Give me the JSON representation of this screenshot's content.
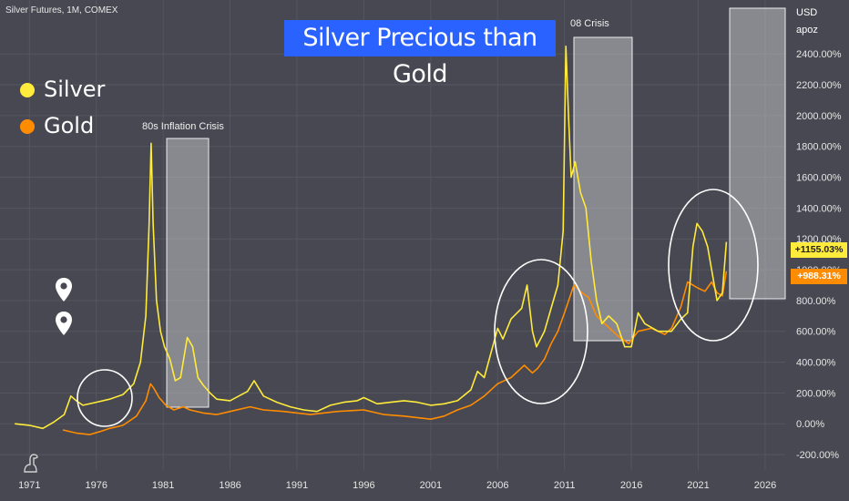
{
  "header": {
    "symbol": "Silver Futures, 1M, COMEX"
  },
  "title": "Silver Precious than Gold",
  "legend": [
    {
      "label": "Silver",
      "color": "#ffeb3b"
    },
    {
      "label": "Gold",
      "color": "#ff8c00"
    }
  ],
  "annotations": {
    "inflation": "80s Inflation Crisis",
    "crisis08": "08 Crisis"
  },
  "axis": {
    "unit_line1": "USD",
    "unit_line2": "apoz"
  },
  "badges": {
    "silver": "+1155.03%",
    "gold": "+988.31%"
  },
  "colors": {
    "background": "#474851",
    "silver": "#ffeb3b",
    "gold": "#ff8c00",
    "title_bg": "#2962ff"
  },
  "icons": [
    "map-pin-icon",
    "map-pin-icon",
    "tradingview-logo-icon"
  ],
  "chart_data": {
    "type": "line",
    "xlabel": "",
    "ylabel": "",
    "xlim": [
      1968.8,
      2027.5
    ],
    "ylim": [
      -300,
      2750
    ],
    "x_ticks": [
      "1971",
      "1976",
      "1981",
      "1986",
      "1991",
      "1996",
      "2001",
      "2006",
      "2011",
      "2016",
      "2021",
      "2026"
    ],
    "y_ticks": [
      "-200.00%",
      "0.00%",
      "200.00%",
      "400.00%",
      "600.00%",
      "800.00%",
      "1000.00%",
      "1200.00%",
      "1400.00%",
      "1600.00%",
      "1800.00%",
      "2000.00%",
      "2200.00%",
      "2400.00%"
    ],
    "y_tick_values": [
      -200,
      0,
      200,
      400,
      600,
      800,
      1000,
      1200,
      1400,
      1600,
      1800,
      2000,
      2200,
      2400
    ],
    "x_tick_values": [
      1971,
      1976,
      1981,
      1986,
      1991,
      1996,
      2001,
      2006,
      2011,
      2016,
      2021,
      2026
    ],
    "grid": true,
    "series": [
      {
        "name": "Silver",
        "x": [
          1969.9,
          1971.0,
          1972.0,
          1972.8,
          1973.6,
          1974.1,
          1974.5,
          1975.0,
          1976.0,
          1977.0,
          1978.0,
          1978.8,
          1979.3,
          1979.7,
          1979.95,
          1980.1,
          1980.25,
          1980.5,
          1980.8,
          1981.1,
          1981.5,
          1981.9,
          1982.3,
          1982.8,
          1983.2,
          1983.6,
          1984.0,
          1984.5,
          1985.0,
          1986.0,
          1987.3,
          1987.8,
          1988.5,
          1989.5,
          1990.5,
          1991.5,
          1992.5,
          1993.5,
          1994.5,
          1995.5,
          1996.0,
          1997.0,
          1998.0,
          1999.0,
          2000.0,
          2001.0,
          2002.0,
          2003.0,
          2004.0,
          2004.5,
          2005.0,
          2006.0,
          2006.4,
          2007.0,
          2007.8,
          2008.2,
          2008.6,
          2008.9,
          2009.5,
          2010.0,
          2010.5,
          2010.9,
          2011.1,
          2011.3,
          2011.5,
          2011.8,
          2012.2,
          2012.6,
          2013.0,
          2013.4,
          2013.8,
          2014.3,
          2014.9,
          2015.5,
          2016.0,
          2016.5,
          2017.0,
          2018.0,
          2019.0,
          2019.7,
          2020.2,
          2020.6,
          2020.9,
          2021.3,
          2021.7,
          2022.0,
          2022.4,
          2022.8,
          2023.1
        ],
        "y": [
          0,
          -10,
          -30,
          10,
          60,
          180,
          150,
          120,
          140,
          160,
          190,
          260,
          400,
          700,
          1300,
          1820,
          1300,
          800,
          600,
          500,
          420,
          280,
          300,
          560,
          500,
          300,
          250,
          200,
          160,
          150,
          210,
          280,
          180,
          140,
          110,
          90,
          80,
          120,
          140,
          150,
          170,
          130,
          140,
          150,
          140,
          120,
          130,
          150,
          220,
          340,
          300,
          620,
          550,
          680,
          750,
          900,
          600,
          500,
          600,
          750,
          900,
          1250,
          2450,
          2000,
          1600,
          1700,
          1500,
          1400,
          1050,
          800,
          650,
          700,
          650,
          500,
          500,
          720,
          650,
          600,
          600,
          680,
          720,
          1150,
          1300,
          1250,
          1150,
          1000,
          800,
          850,
          1180
        ]
      },
      {
        "name": "Gold",
        "x": [
          1973.5,
          1974.5,
          1975.5,
          1976.3,
          1977.0,
          1978.0,
          1979.0,
          1979.7,
          1980.05,
          1980.3,
          1980.7,
          1981.2,
          1981.8,
          1982.5,
          1983.0,
          1984.0,
          1985.0,
          1986.0,
          1987.5,
          1988.5,
          1990.0,
          1992.0,
          1994.0,
          1996.0,
          1997.5,
          1999.0,
          2001.0,
          2002.0,
          2003.0,
          2004.0,
          2005.0,
          2006.0,
          2007.0,
          2008.0,
          2008.6,
          2009.0,
          2009.5,
          2010.0,
          2010.5,
          2011.0,
          2011.7,
          2012.3,
          2012.8,
          2013.4,
          2014.0,
          2015.0,
          2015.8,
          2016.5,
          2017.5,
          2018.5,
          2019.0,
          2019.7,
          2020.2,
          2020.6,
          2021.0,
          2021.5,
          2022.0,
          2022.4,
          2022.8,
          2023.1
        ],
        "y": [
          -40,
          -60,
          -70,
          -50,
          -30,
          -10,
          50,
          150,
          260,
          230,
          170,
          120,
          90,
          110,
          90,
          70,
          60,
          80,
          110,
          90,
          80,
          60,
          80,
          90,
          60,
          50,
          30,
          50,
          90,
          120,
          180,
          260,
          300,
          380,
          330,
          360,
          420,
          520,
          600,
          720,
          900,
          850,
          820,
          700,
          650,
          570,
          520,
          600,
          620,
          580,
          620,
          760,
          920,
          900,
          880,
          860,
          920,
          850,
          830,
          990
        ]
      }
    ]
  }
}
